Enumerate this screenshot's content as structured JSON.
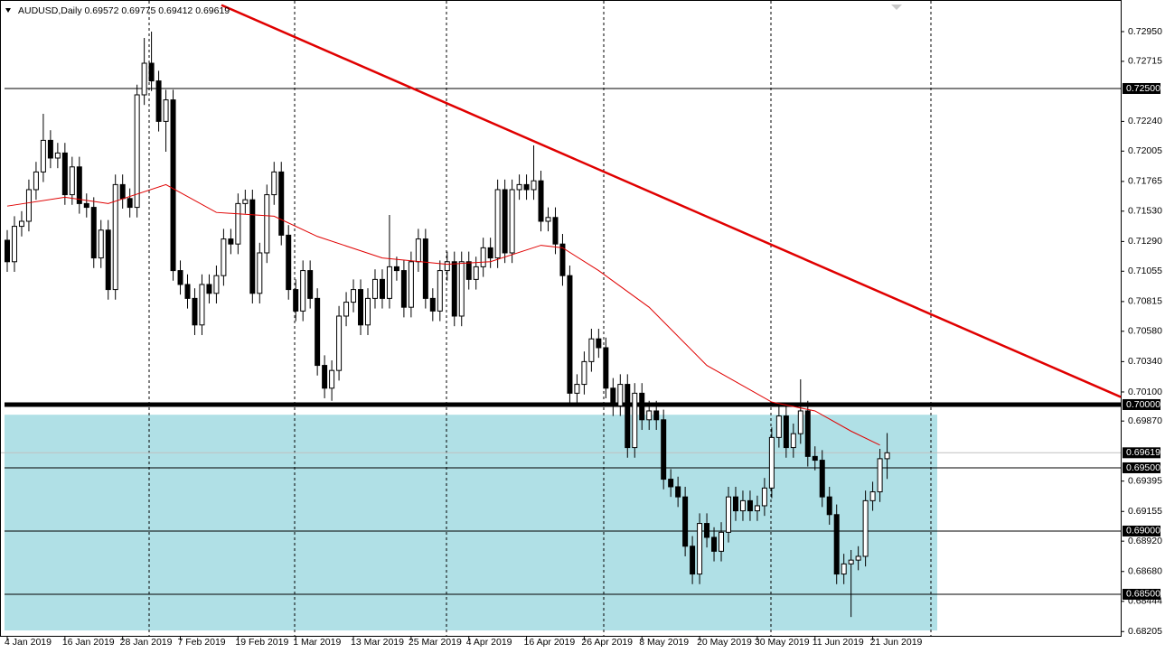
{
  "chart_data": {
    "type": "candlestick",
    "symbol": "AUDUSD,Daily",
    "up_color": "#ffffff",
    "down_color": "#000000",
    "wick_color": "#000000",
    "open": [
      0.713,
      0.7113,
      0.7141,
      0.7145,
      0.717,
      0.7184,
      0.7209,
      0.7195,
      0.7199,
      0.7166,
      0.7188,
      0.7159,
      0.7156,
      0.7116,
      0.7138,
      0.7091,
      0.7174,
      0.7163,
      0.7156,
      0.7245,
      0.727,
      0.7256,
      0.7224,
      0.7241,
      0.7106,
      0.7095,
      0.7084,
      0.7063,
      0.7095,
      0.7088,
      0.7102,
      0.7131,
      0.7127,
      0.7159,
      0.7162,
      0.7088,
      0.712,
      0.7166,
      0.7184,
      0.7134,
      0.7091,
      0.7074,
      0.7106,
      0.7084,
      0.7031,
      0.7013,
      0.7027,
      0.707,
      0.7081,
      0.7091,
      0.7063,
      0.7084,
      0.7099,
      0.7084,
      0.7109,
      0.7106,
      0.7077,
      0.7113,
      0.7131,
      0.7084,
      0.7074,
      0.7106,
      0.7113,
      0.707,
      0.7113,
      0.7099,
      0.7109,
      0.7124,
      0.7116,
      0.717,
      0.712,
      0.717,
      0.7174,
      0.717,
      0.7177,
      0.7145,
      0.7148,
      0.7127,
      0.7102,
      0.7009,
      0.7016,
      0.7034,
      0.7052,
      0.7045,
      0.7013,
      0.6999,
      0.7016,
      0.6966,
      0.7009,
      0.6988,
      0.6995,
      0.6988,
      0.6941,
      0.6935,
      0.6927,
      0.6888,
      0.6866,
      0.6906,
      0.6895,
      0.6884,
      0.6899,
      0.6927,
      0.6916,
      0.6924,
      0.6916,
      0.692,
      0.6934,
      0.6974,
      0.6991,
      0.6966,
      0.6977,
      0.6995,
      0.6959,
      0.6956,
      0.6927,
      0.6913,
      0.6866,
      0.6874,
      0.6877,
      0.688,
      0.6924,
      0.6931,
      0.69572
    ],
    "high": [
      0.7138,
      0.7149,
      0.7153,
      0.7178,
      0.7192,
      0.723,
      0.7217,
      0.7207,
      0.7207,
      0.7196,
      0.7196,
      0.7167,
      0.7164,
      0.7146,
      0.7146,
      0.7182,
      0.7182,
      0.7171,
      0.7253,
      0.729,
      0.7295,
      0.7264,
      0.7249,
      0.7249,
      0.7114,
      0.7103,
      0.7092,
      0.7103,
      0.7103,
      0.711,
      0.7139,
      0.7139,
      0.7167,
      0.717,
      0.717,
      0.7128,
      0.7174,
      0.7192,
      0.7192,
      0.7142,
      0.7099,
      0.7114,
      0.7114,
      0.7092,
      0.7039,
      0.7035,
      0.7078,
      0.7089,
      0.7099,
      0.7099,
      0.7092,
      0.7107,
      0.7107,
      0.715,
      0.7117,
      0.7114,
      0.7121,
      0.7139,
      0.7139,
      0.7092,
      0.7114,
      0.7121,
      0.7121,
      0.7121,
      0.7121,
      0.7117,
      0.7132,
      0.7132,
      0.7178,
      0.7178,
      0.7178,
      0.7182,
      0.7182,
      0.7205,
      0.7185,
      0.7156,
      0.7156,
      0.7135,
      0.711,
      0.7024,
      0.7042,
      0.706,
      0.706,
      0.7053,
      0.7021,
      0.7024,
      0.7024,
      0.7017,
      0.7017,
      0.7003,
      0.7003,
      0.6996,
      0.6949,
      0.6943,
      0.6935,
      0.6896,
      0.6914,
      0.6914,
      0.6903,
      0.6907,
      0.6935,
      0.6935,
      0.6932,
      0.6932,
      0.6928,
      0.6942,
      0.6982,
      0.6999,
      0.6999,
      0.6985,
      0.702,
      0.7003,
      0.6967,
      0.6964,
      0.6935,
      0.6921,
      0.6882,
      0.6885,
      0.6888,
      0.6932,
      0.6939,
      0.6965,
      0.69775
    ],
    "low": [
      0.7105,
      0.7105,
      0.7133,
      0.7137,
      0.7162,
      0.7176,
      0.7187,
      0.7187,
      0.7158,
      0.7158,
      0.7151,
      0.7148,
      0.7108,
      0.7108,
      0.7083,
      0.7083,
      0.7155,
      0.7148,
      0.7148,
      0.7237,
      0.7248,
      0.7216,
      0.72,
      0.7098,
      0.7087,
      0.7076,
      0.7055,
      0.7055,
      0.708,
      0.708,
      0.7094,
      0.7119,
      0.7119,
      0.7151,
      0.708,
      0.708,
      0.7112,
      0.7158,
      0.7126,
      0.7083,
      0.7066,
      0.7066,
      0.7076,
      0.7023,
      0.7005,
      0.7003,
      0.7019,
      0.7062,
      0.7073,
      0.7055,
      0.7055,
      0.7076,
      0.7076,
      0.7076,
      0.7098,
      0.7069,
      0.7069,
      0.7105,
      0.7076,
      0.7066,
      0.7066,
      0.7098,
      0.7062,
      0.7062,
      0.7091,
      0.7091,
      0.7101,
      0.7108,
      0.7108,
      0.7112,
      0.7112,
      0.7162,
      0.7162,
      0.7162,
      0.7137,
      0.7137,
      0.7119,
      0.7094,
      0.7001,
      0.7001,
      0.7008,
      0.7026,
      0.7037,
      0.7005,
      0.6991,
      0.6991,
      0.6958,
      0.6958,
      0.698,
      0.698,
      0.698,
      0.6933,
      0.6927,
      0.6919,
      0.688,
      0.6858,
      0.6858,
      0.6887,
      0.6876,
      0.6876,
      0.6891,
      0.6908,
      0.6908,
      0.6908,
      0.6908,
      0.6912,
      0.6926,
      0.6966,
      0.6958,
      0.6958,
      0.6969,
      0.6951,
      0.6948,
      0.6919,
      0.6905,
      0.6858,
      0.6858,
      0.6832,
      0.6869,
      0.6872,
      0.6916,
      0.6923,
      0.69412
    ],
    "close": [
      0.7113,
      0.7141,
      0.7145,
      0.717,
      0.7184,
      0.7209,
      0.7195,
      0.7199,
      0.7166,
      0.7188,
      0.7159,
      0.7156,
      0.7116,
      0.7138,
      0.7091,
      0.7174,
      0.7163,
      0.7156,
      0.7245,
      0.727,
      0.7256,
      0.7224,
      0.7241,
      0.7106,
      0.7095,
      0.7084,
      0.7063,
      0.7095,
      0.7088,
      0.7102,
      0.7131,
      0.7127,
      0.7159,
      0.7162,
      0.7088,
      0.712,
      0.7166,
      0.7184,
      0.7134,
      0.7091,
      0.7074,
      0.7106,
      0.7084,
      0.7031,
      0.7013,
      0.7027,
      0.707,
      0.7081,
      0.7091,
      0.7063,
      0.7084,
      0.7099,
      0.7084,
      0.7109,
      0.7106,
      0.7077,
      0.7113,
      0.7131,
      0.7084,
      0.7074,
      0.7106,
      0.7113,
      0.707,
      0.7113,
      0.7099,
      0.7109,
      0.7124,
      0.7116,
      0.717,
      0.712,
      0.717,
      0.7174,
      0.717,
      0.7177,
      0.7145,
      0.7148,
      0.7127,
      0.7102,
      0.7009,
      0.7016,
      0.7034,
      0.7052,
      0.7045,
      0.7013,
      0.6999,
      0.7016,
      0.6966,
      0.7009,
      0.6988,
      0.6995,
      0.6988,
      0.6941,
      0.6935,
      0.6927,
      0.6888,
      0.6866,
      0.6906,
      0.6895,
      0.6884,
      0.6899,
      0.6927,
      0.6916,
      0.6924,
      0.6916,
      0.692,
      0.6934,
      0.6974,
      0.6991,
      0.6966,
      0.6977,
      0.6995,
      0.6959,
      0.6956,
      0.6927,
      0.6913,
      0.6866,
      0.6874,
      0.6877,
      0.688,
      0.6924,
      0.6931,
      0.69572,
      0.69619
    ],
    "ma": {
      "color": "#e00000",
      "x": [
        0,
        8,
        14,
        22,
        29,
        37,
        43,
        52,
        61,
        67,
        74,
        77,
        82,
        89,
        97,
        106,
        112,
        117,
        121
      ],
      "values": [
        0.7157,
        0.7164,
        0.7159,
        0.7174,
        0.7152,
        0.7149,
        0.7133,
        0.7116,
        0.7111,
        0.7113,
        0.7126,
        0.7124,
        0.7106,
        0.7077,
        0.7031,
        0.7002,
        0.6995,
        0.6979,
        0.6968
      ]
    },
    "trendline": {
      "color": "#e00000",
      "x": [
        29.7,
        154.4
      ],
      "values": [
        0.7316,
        0.7006
      ]
    },
    "zone": {
      "color": "#b0e0e6",
      "ylim": [
        0.68164,
        0.6992
      ]
    },
    "levels": [
      {
        "value": 0.725,
        "label": "0.72500",
        "style": "thin"
      },
      {
        "value": 0.7,
        "label": "0.70000",
        "style": "thick"
      },
      {
        "value": 0.695,
        "label": "0.69500",
        "style": "thin"
      },
      {
        "value": 0.69,
        "label": "0.69000",
        "style": "thin"
      },
      {
        "value": 0.685,
        "label": "0.68500",
        "style": "thin"
      }
    ],
    "ylim": [
      0.68164,
      0.732
    ],
    "yticks": [
      {
        "value": 0.7295,
        "label": "0.72950"
      },
      {
        "value": 0.72715,
        "label": "0.72715"
      },
      {
        "value": 0.7224,
        "label": "0.72240"
      },
      {
        "value": 0.72005,
        "label": "0.72005"
      },
      {
        "value": 0.71765,
        "label": "0.71765"
      },
      {
        "value": 0.7153,
        "label": "0.71530"
      },
      {
        "value": 0.7129,
        "label": "0.71290"
      },
      {
        "value": 0.71055,
        "label": "0.71055"
      },
      {
        "value": 0.70815,
        "label": "0.70815"
      },
      {
        "value": 0.7058,
        "label": "0.70580"
      },
      {
        "value": 0.7034,
        "label": "0.70340"
      },
      {
        "value": 0.701,
        "label": "0.70100"
      },
      {
        "value": 0.6987,
        "label": "0.69870"
      },
      {
        "value": 0.69395,
        "label": "0.69395"
      },
      {
        "value": 0.69155,
        "label": "0.69155"
      },
      {
        "value": 0.6892,
        "label": "0.68920"
      },
      {
        "value": 0.6868,
        "label": "0.68680"
      },
      {
        "value": 0.68444,
        "label": "0.68444"
      },
      {
        "value": 0.68205,
        "label": "0.68205"
      }
    ],
    "xticks": [
      {
        "value": 0,
        "label": "4 Jan 2019"
      },
      {
        "value": 8,
        "label": "16 Jan 2019"
      },
      {
        "value": 16,
        "label": "28 Jan 2019"
      },
      {
        "value": 24,
        "label": "7 Feb 2019"
      },
      {
        "value": 32,
        "label": "19 Feb 2019"
      },
      {
        "value": 40,
        "label": "1 Mar 2019"
      },
      {
        "value": 48,
        "label": "13 Mar 2019"
      },
      {
        "value": 56,
        "label": "25 Mar 2019"
      },
      {
        "value": 64,
        "label": "4 Apr 2019"
      },
      {
        "value": 72,
        "label": "16 Apr 2019"
      },
      {
        "value": 80,
        "label": "26 Apr 2019"
      },
      {
        "value": 88,
        "label": "8 May 2019"
      },
      {
        "value": 96,
        "label": "20 May 2019"
      },
      {
        "value": 104,
        "label": "30 May 2019"
      },
      {
        "value": 112,
        "label": "11 Jun 2019"
      },
      {
        "value": 120,
        "label": "21 Jun 2019"
      }
    ]
  }
}
